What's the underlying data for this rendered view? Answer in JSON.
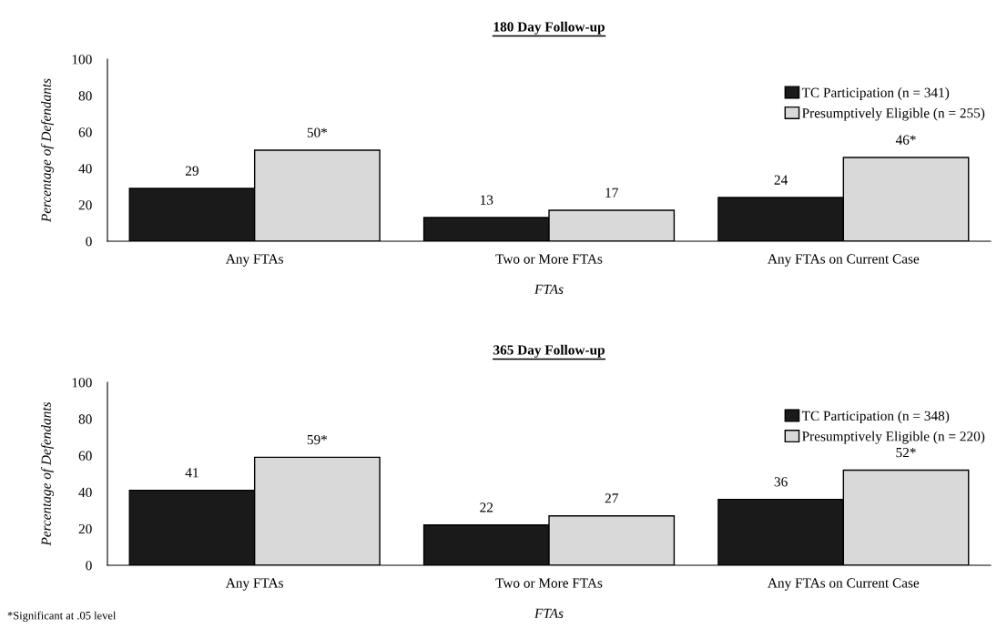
{
  "chart_data": [
    {
      "type": "bar",
      "title": "180 Day Follow-up",
      "xlabel": "FTAs",
      "ylabel": "Percentage of Defendants",
      "categories": [
        "Any FTAs",
        "Two or More FTAs",
        "Any FTAs on Current Case"
      ],
      "series": [
        {
          "name": "TC Participation (n = 341)",
          "color": "#1a1a1a",
          "values": [
            29,
            13,
            24
          ],
          "value_labels": [
            "29",
            "13",
            "24"
          ]
        },
        {
          "name": "Presumptively Eligible (n = 255)",
          "color": "#d9d9d9",
          "values": [
            50,
            17,
            46
          ],
          "value_labels": [
            "50*",
            "17",
            "46*"
          ]
        }
      ],
      "ylim": [
        0,
        100
      ],
      "yticks": [
        0,
        20,
        40,
        60,
        80,
        100
      ],
      "grid": false,
      "legend": "top right"
    },
    {
      "type": "bar",
      "title": "365 Day Follow-up",
      "xlabel": "FTAs",
      "ylabel": "Percentage of Defendants",
      "categories": [
        "Any FTAs",
        "Two or More FTAs",
        "Any FTAs on Current Case"
      ],
      "series": [
        {
          "name": "TC Participation (n = 348)",
          "color": "#1a1a1a",
          "values": [
            41,
            22,
            36
          ],
          "value_labels": [
            "41",
            "22",
            "36"
          ]
        },
        {
          "name": "Presumptively Eligible (n = 220)",
          "color": "#d9d9d9",
          "values": [
            59,
            27,
            52
          ],
          "value_labels": [
            "59*",
            "27",
            "52*"
          ]
        }
      ],
      "ylim": [
        0,
        100
      ],
      "yticks": [
        0,
        20,
        40,
        60,
        80,
        100
      ],
      "grid": false,
      "legend": "top right",
      "annotations": [
        "*Significant at .05 level"
      ]
    }
  ]
}
